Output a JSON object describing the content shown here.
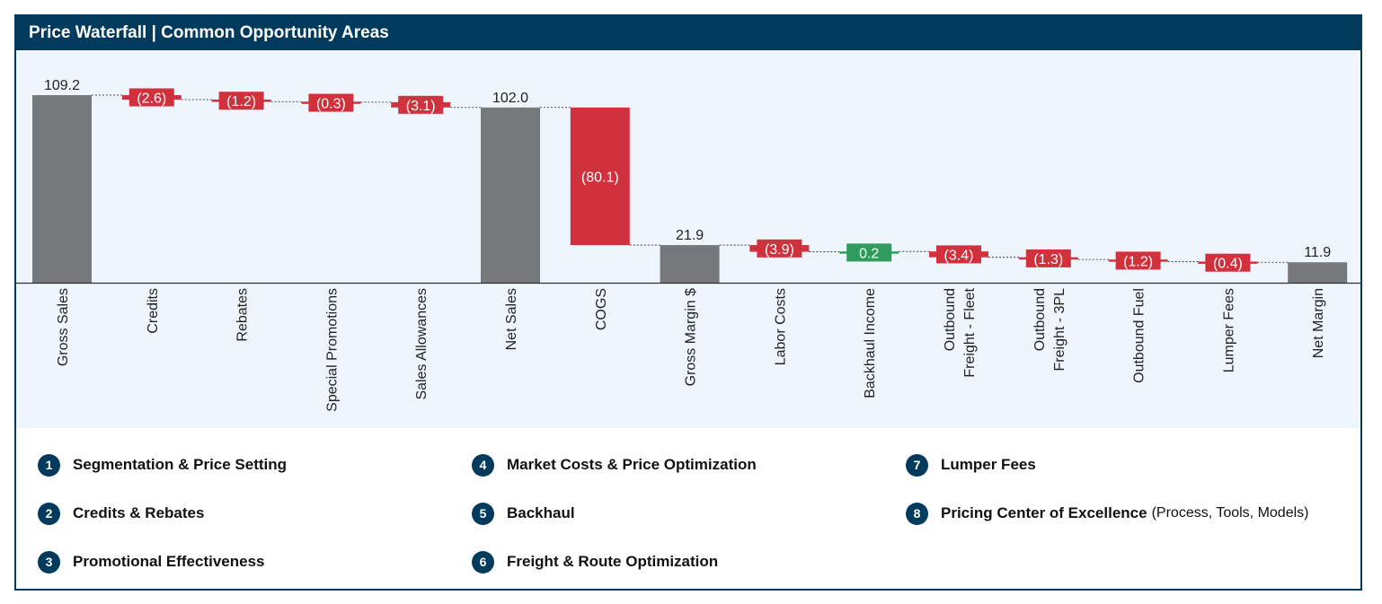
{
  "header": {
    "title": "Price Waterfall | Common Opportunity Areas"
  },
  "colors": {
    "total": "#76797c",
    "negative": "#d0313c",
    "positive": "#2f9b5c",
    "header": "#003a5d",
    "background": "#eef5fc"
  },
  "chart_data": {
    "type": "waterfall",
    "title": "Price Waterfall | Common Opportunity Areas",
    "categories": [
      "Gross Sales",
      "Credits",
      "Rebates",
      "Special Promotions",
      "Sales Allowances",
      "Net Sales",
      "COGS",
      "Gross Margin $",
      "Labor Costs",
      "Backhaul Income",
      "Outbound Freight - Fleet",
      "Outbound Freight - 3PL",
      "Outbound Fuel",
      "Lumper Fees",
      "Net Margin"
    ],
    "category_lines": [
      [
        "Gross Sales"
      ],
      [
        "Credits"
      ],
      [
        "Rebates"
      ],
      [
        "Special Promotions"
      ],
      [
        "Sales Allowances"
      ],
      [
        "Net Sales"
      ],
      [
        "COGS"
      ],
      [
        "Gross Margin $"
      ],
      [
        "Labor Costs"
      ],
      [
        "Backhaul Income"
      ],
      [
        "Outbound",
        "Freight - Fleet"
      ],
      [
        "Outbound",
        "Freight - 3PL"
      ],
      [
        "Outbound Fuel"
      ],
      [
        "Lumper Fees"
      ],
      [
        "Net Margin"
      ]
    ],
    "values": [
      109.2,
      -2.6,
      -1.2,
      -0.3,
      -3.1,
      102.0,
      -80.1,
      21.9,
      -3.9,
      0.2,
      -3.4,
      -1.3,
      -1.2,
      -0.4,
      11.9
    ],
    "kinds": [
      "total",
      "delta",
      "delta",
      "delta",
      "delta",
      "total",
      "delta",
      "total",
      "delta",
      "delta",
      "delta",
      "delta",
      "delta",
      "delta",
      "total"
    ],
    "labels": [
      "109.2",
      "(2.6)",
      "(1.2)",
      "(0.3)",
      "(3.1)",
      "102.0",
      "(80.1)",
      "21.9",
      "(3.9)",
      "0.2",
      "(3.4)",
      "(1.3)",
      "(1.2)",
      "(0.4)",
      "11.9"
    ],
    "ylim": [
      0,
      120
    ],
    "grid": false,
    "legend": "none"
  },
  "legend": {
    "items": [
      {
        "num": "1",
        "label": "Segmentation & Price Setting",
        "note": ""
      },
      {
        "num": "2",
        "label": "Credits & Rebates",
        "note": ""
      },
      {
        "num": "3",
        "label": "Promotional Effectiveness",
        "note": ""
      },
      {
        "num": "4",
        "label": "Market Costs & Price Optimization",
        "note": ""
      },
      {
        "num": "5",
        "label": "Backhaul",
        "note": ""
      },
      {
        "num": "6",
        "label": "Freight & Route Optimization",
        "note": ""
      },
      {
        "num": "7",
        "label": "Lumper Fees",
        "note": ""
      },
      {
        "num": "8",
        "label": "Pricing Center of Excellence",
        "note": "(Process, Tools, Models)"
      }
    ]
  }
}
